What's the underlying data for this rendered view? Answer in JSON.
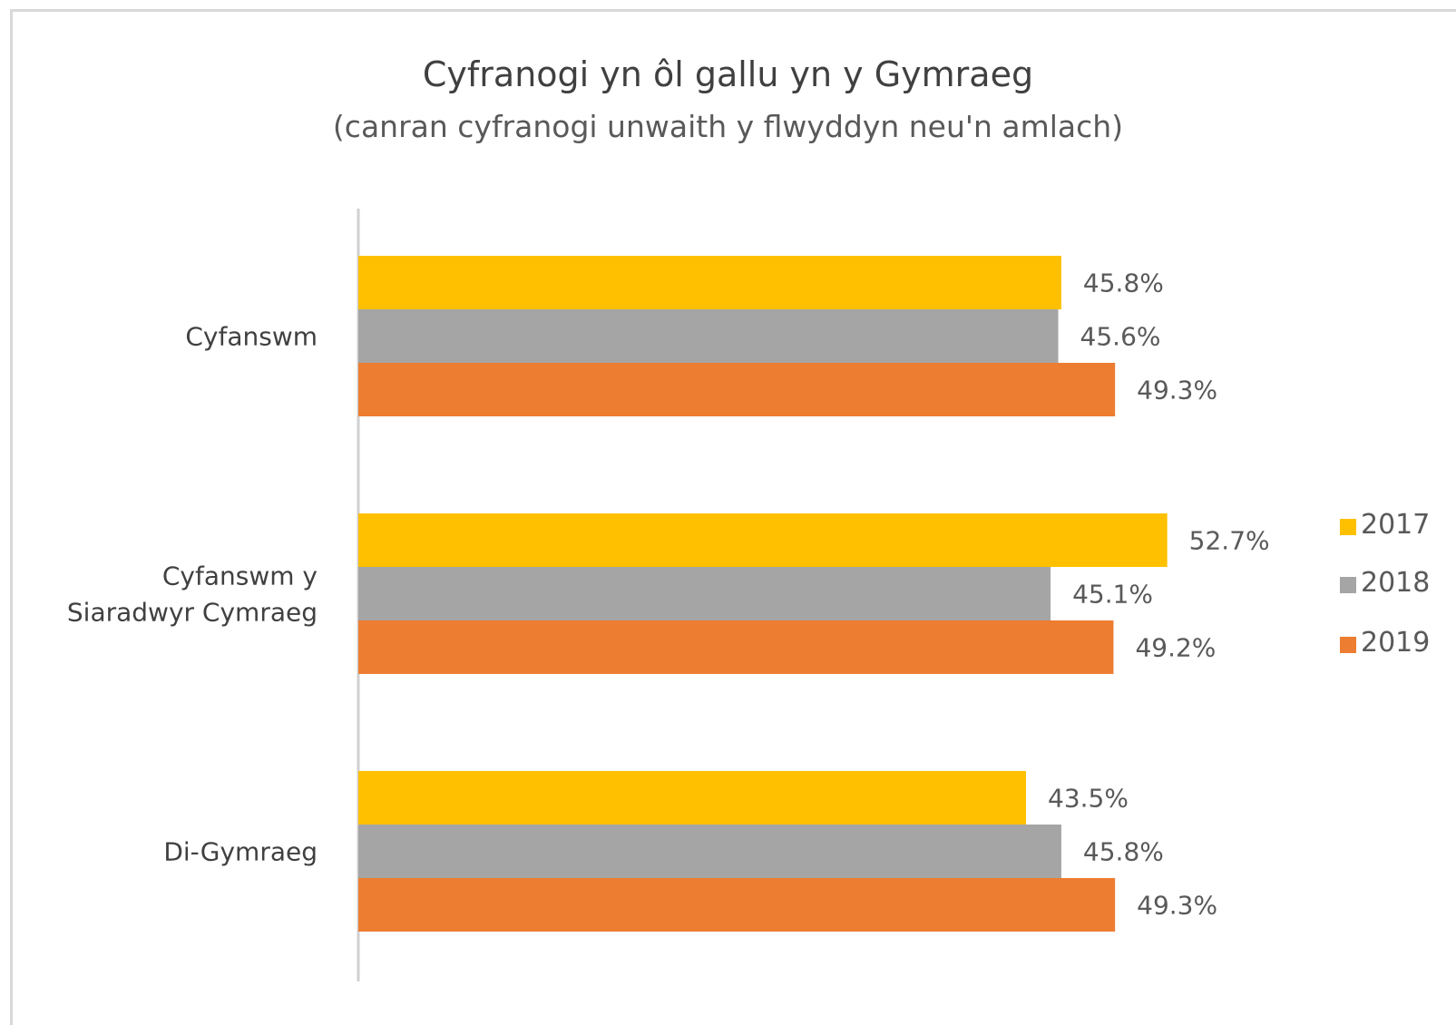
{
  "chart_data": {
    "type": "bar",
    "orientation": "horizontal",
    "title": "Cyfranogi yn ôl gallu yn y Gymraeg",
    "subtitle": "(canran cyfranogi unwaith y flwyddyn neu'n amlach)",
    "categories": [
      [
        "Cyfanswm"
      ],
      [
        "Cyfanswm y",
        "Siaradwyr Cymraeg"
      ],
      [
        "Di-Gymraeg"
      ]
    ],
    "series": [
      {
        "name": "2017",
        "color": "#FFC000",
        "values": [
          45.8,
          52.7,
          43.5
        ],
        "labels": [
          "45.8%",
          "52.7%",
          "43.5%"
        ]
      },
      {
        "name": "2018",
        "color": "#A5A5A5",
        "values": [
          45.6,
          45.1,
          45.8
        ],
        "labels": [
          "45.6%",
          "45.1%",
          "45.8%"
        ]
      },
      {
        "name": "2019",
        "color": "#ED7D31",
        "values": [
          49.3,
          49.2,
          49.3
        ],
        "labels": [
          "49.3%",
          "49.2%",
          "49.3%"
        ]
      }
    ],
    "xlim": [
      0,
      60
    ],
    "grid": false,
    "legend_position": "right"
  }
}
